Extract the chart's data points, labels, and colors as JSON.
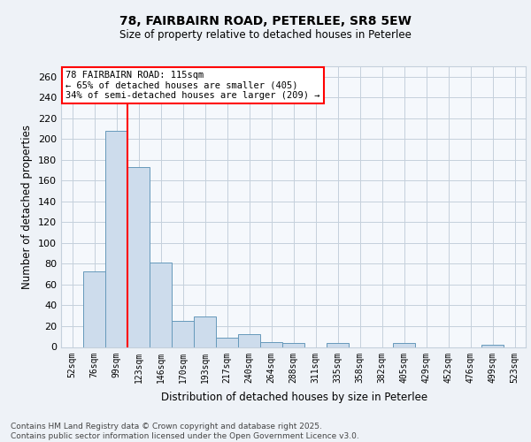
{
  "title_line1": "78, FAIRBAIRN ROAD, PETERLEE, SR8 5EW",
  "title_line2": "Size of property relative to detached houses in Peterlee",
  "xlabel": "Distribution of detached houses by size in Peterlee",
  "ylabel": "Number of detached properties",
  "bin_labels": [
    "52sqm",
    "76sqm",
    "99sqm",
    "123sqm",
    "146sqm",
    "170sqm",
    "193sqm",
    "217sqm",
    "240sqm",
    "264sqm",
    "288sqm",
    "311sqm",
    "335sqm",
    "358sqm",
    "382sqm",
    "405sqm",
    "429sqm",
    "452sqm",
    "476sqm",
    "499sqm",
    "523sqm"
  ],
  "bar_values": [
    0,
    73,
    208,
    173,
    81,
    25,
    29,
    9,
    12,
    5,
    4,
    0,
    4,
    0,
    0,
    4,
    0,
    0,
    0,
    2,
    0
  ],
  "bar_color": "#cddcec",
  "bar_edge_color": "#6699bb",
  "vline_color": "red",
  "annotation_text": "78 FAIRBAIRN ROAD: 115sqm\n← 65% of detached houses are smaller (405)\n34% of semi-detached houses are larger (209) →",
  "annotation_box_color": "white",
  "annotation_box_edgecolor": "red",
  "ylim": [
    0,
    270
  ],
  "yticks": [
    0,
    20,
    40,
    60,
    80,
    100,
    120,
    140,
    160,
    180,
    200,
    220,
    240,
    260
  ],
  "footer_text": "Contains HM Land Registry data © Crown copyright and database right 2025.\nContains public sector information licensed under the Open Government Licence v3.0.",
  "bg_color": "#eef2f7",
  "plot_bg_color": "#f5f8fc",
  "grid_color": "#c5d0dc"
}
